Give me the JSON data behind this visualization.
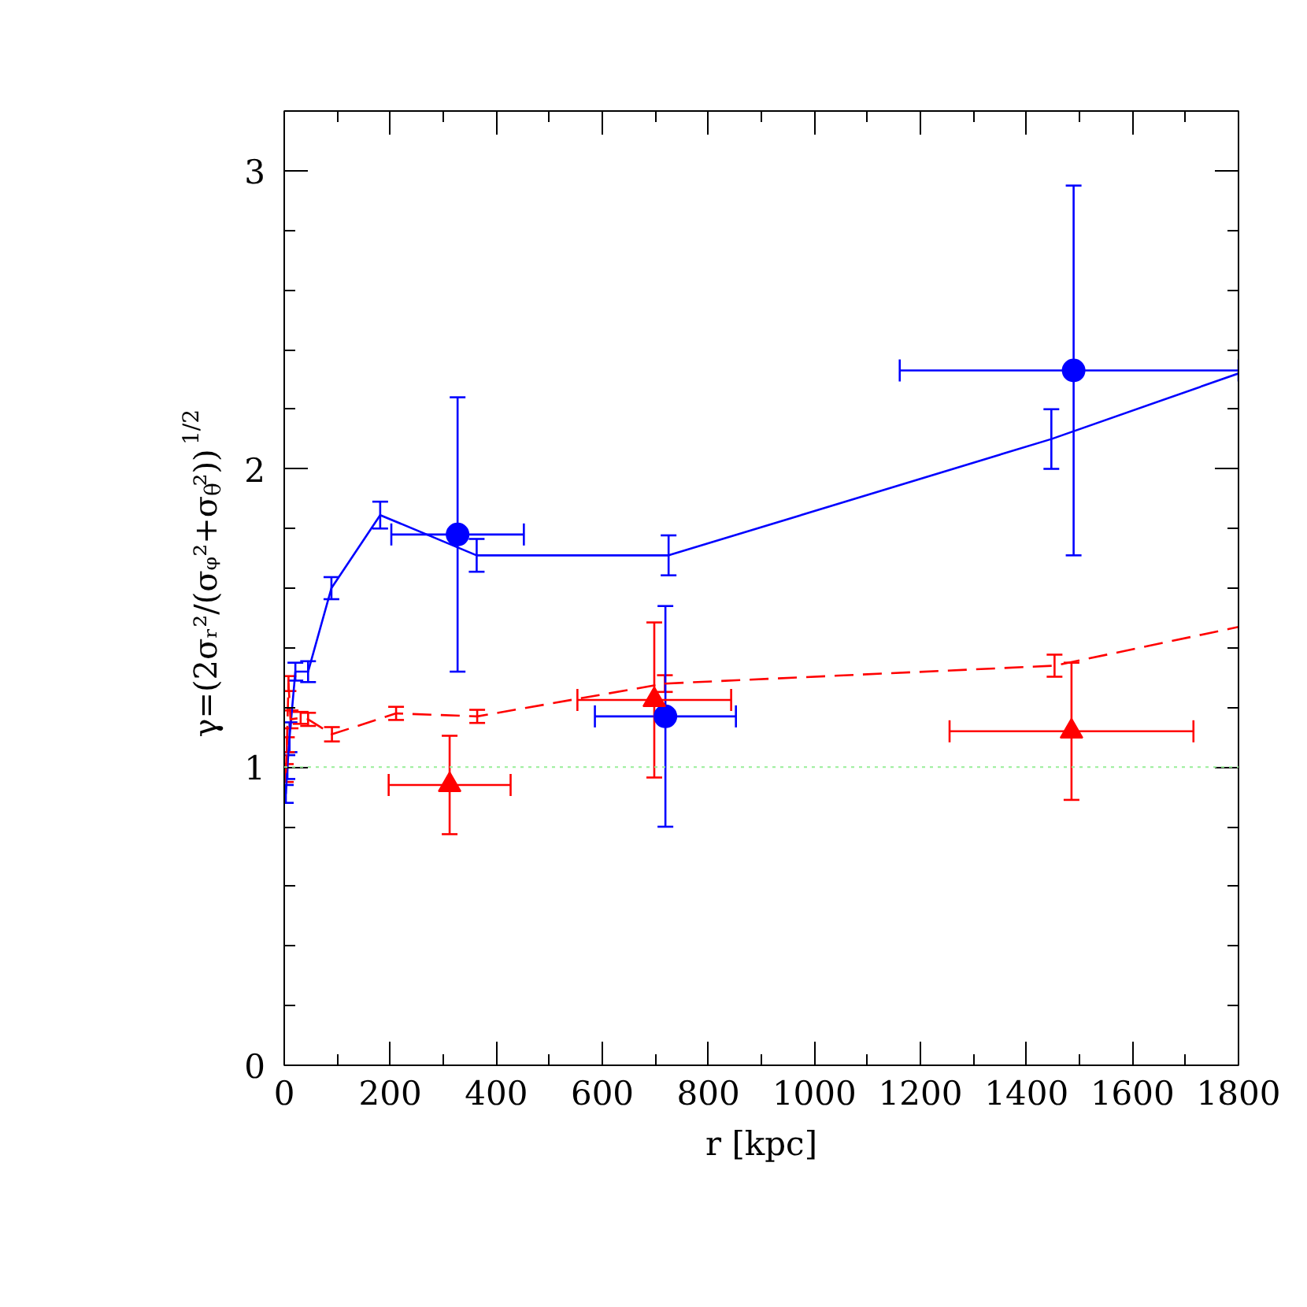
{
  "chart_data": {
    "type": "line",
    "xlabel": "r [kpc]",
    "ylabel": "γ=(2σᵣ²/(σᵩ²+σ$_{θ}$²))$^{1/2}$",
    "xlim": [
      0,
      1800
    ],
    "ylim": [
      0,
      3.2
    ],
    "xticks": [
      0,
      {
        "value": 100,
        "label": null
      },
      200,
      {
        "value": 300,
        "label": null
      },
      400,
      {
        "value": 500,
        "label": null
      },
      600,
      {
        "value": 700,
        "label": null
      },
      800,
      {
        "value": 900,
        "label": null
      },
      1000,
      {
        "value": 1100,
        "label": null
      },
      1200,
      {
        "value": 1300,
        "label": null
      },
      1400,
      {
        "value": 1500,
        "label": null
      },
      1600,
      {
        "value": 1700,
        "label": null
      },
      1800
    ],
    "yticks": [
      0,
      {
        "value": 0.2,
        "label": null
      },
      {
        "value": 0.4,
        "label": null
      },
      {
        "value": 0.6,
        "label": null
      },
      {
        "value": 0.8,
        "label": null
      },
      1,
      {
        "value": 1.2,
        "label": null
      },
      {
        "value": 1.4,
        "label": null
      },
      {
        "value": 1.6,
        "label": null
      },
      {
        "value": 1.8,
        "label": null
      },
      2,
      {
        "value": 2.2,
        "label": null
      },
      {
        "value": 2.4,
        "label": null
      },
      {
        "value": 2.6,
        "label": null
      },
      {
        "value": 2.8,
        "label": null
      },
      3
    ],
    "ref_lines": [
      {
        "axis": "y",
        "value": 1,
        "color": "#99ee99",
        "line_style": "dotted"
      }
    ],
    "series": [
      {
        "color": "#0000ff",
        "line_style": "solid",
        "marker": "none",
        "x": [
          3,
          6,
          10,
          21,
          45,
          89,
          181,
          363,
          725,
          1447,
          1800
        ],
        "values": [
          0.91,
          1.0,
          1.1,
          1.32,
          1.32,
          1.6,
          1.845,
          1.71,
          1.71,
          2.1,
          2.32
        ],
        "errors": [
          0.03,
          0.04,
          0.05,
          0.03,
          0.035,
          0.037,
          0.045,
          0.055,
          0.067,
          0.1,
          null
        ]
      },
      {
        "color": "#ff0000",
        "line_style": "dashed",
        "marker": "none",
        "x": [
          3,
          5,
          8,
          12,
          31,
          45,
          90,
          211,
          364,
          718,
          1453,
          1800
        ],
        "values": [
          0.98,
          1.075,
          1.28,
          1.16,
          1.165,
          1.16,
          1.11,
          1.18,
          1.17,
          1.28,
          1.34,
          1.47
        ],
        "errors": [
          0.03,
          0.025,
          0.025,
          0.03,
          0.02,
          0.022,
          0.024,
          0.022,
          0.022,
          0.028,
          0.037,
          null
        ]
      },
      {
        "type": "scatter",
        "color": "#0000ff",
        "marker": "circle",
        "x": [
          327,
          719,
          1489
        ],
        "values": [
          1.78,
          1.17,
          2.33
        ],
        "errors": [
          0.46,
          0.37,
          0.62
        ],
        "xerrors": [
          125,
          133,
          [
            1161,
            1800
          ]
        ]
      },
      {
        "type": "scatter",
        "color": "#ff0000",
        "marker": "triangle",
        "x": [
          312,
          698,
          1485
        ],
        "values": [
          0.94,
          1.225,
          1.12
        ],
        "errors": [
          0.165,
          0.26,
          0.23
        ],
        "xerrors": [
          115,
          145,
          230
        ]
      }
    ]
  }
}
